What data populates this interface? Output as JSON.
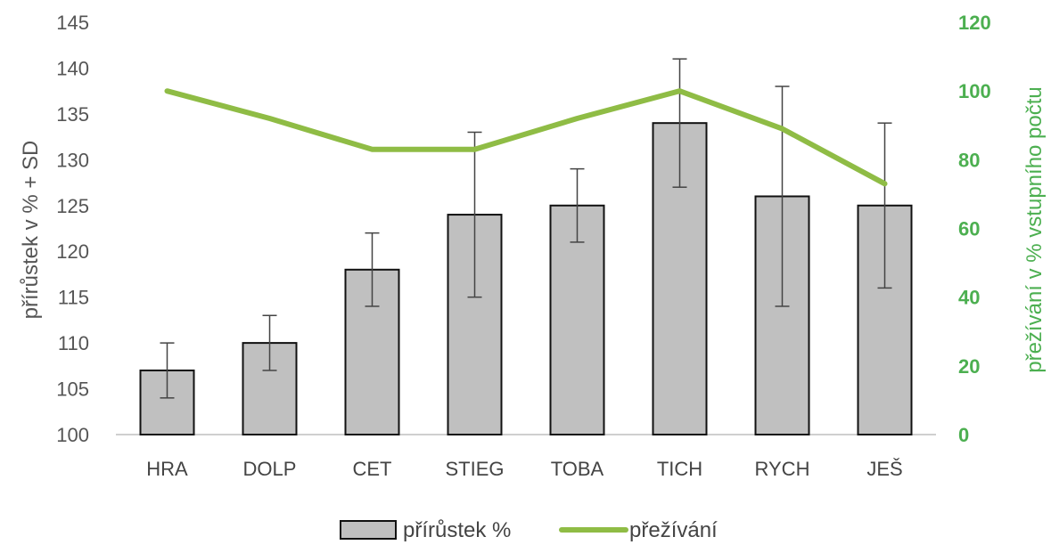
{
  "chart_data": {
    "type": "bar",
    "categories": [
      "HRA",
      "DOLP",
      "CET",
      "STIEG",
      "TOBA",
      "TICH",
      "RYCH",
      "JEŠ"
    ],
    "series": [
      {
        "name": "přírůstek %",
        "type": "bar",
        "axis": "left",
        "values": [
          107,
          110,
          118,
          124,
          125,
          134,
          126,
          125
        ],
        "error": [
          3,
          3,
          4,
          9,
          4,
          7,
          12,
          9
        ],
        "color": "#c0c0c0"
      },
      {
        "name": "přežívání",
        "type": "line",
        "axis": "right",
        "values": [
          100,
          92,
          83,
          83,
          92,
          100,
          89,
          73
        ],
        "color": "#8fbc45"
      }
    ],
    "ylabel": "přírůstek v % + SD",
    "y2label": "přežívání v % vstupního počtu",
    "ylim": [
      100,
      145
    ],
    "y2lim": [
      0,
      120
    ],
    "yticks": [
      "100",
      "105",
      "110",
      "115",
      "120",
      "125",
      "130",
      "135",
      "140",
      "145"
    ],
    "y2ticks": [
      "0",
      "20",
      "40",
      "60",
      "80",
      "100",
      "120"
    ],
    "y2_color": "#4caf50",
    "legend_position": "bottom",
    "grid": false
  }
}
